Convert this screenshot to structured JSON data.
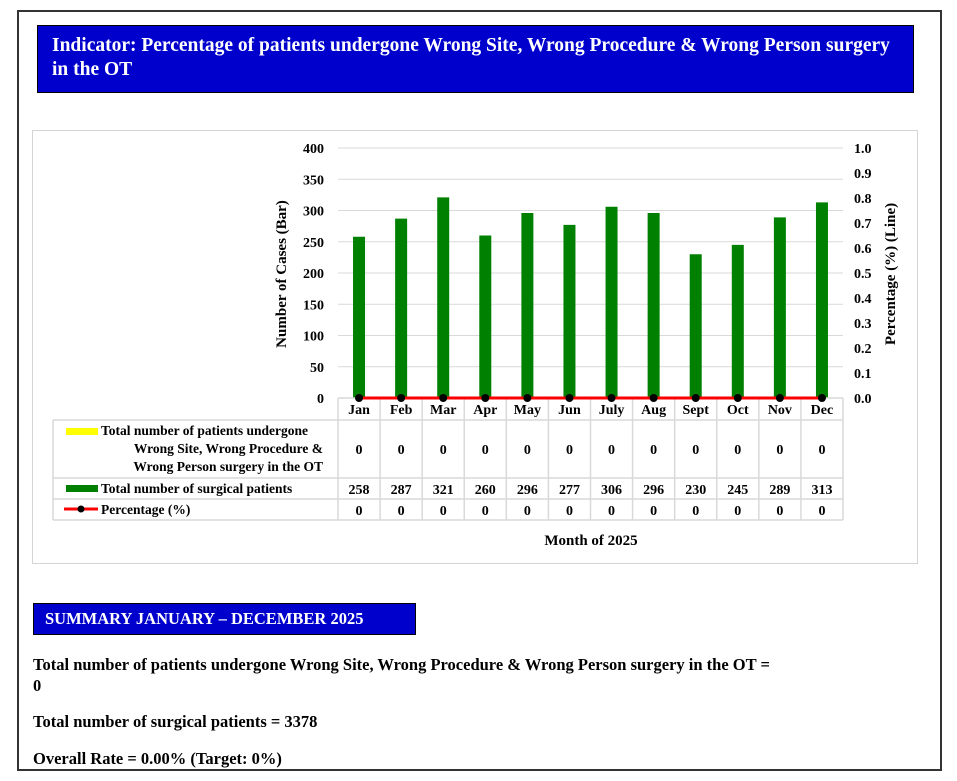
{
  "title": "Indicator: Percentage of patients undergone Wrong Site, Wrong Procedure & Wrong Person surgery in the OT",
  "colors": {
    "header_bg": "#0000cc",
    "bar": "#008000",
    "line": "#ff0000",
    "marker": "#000000",
    "legend_wrong": "#ffff00"
  },
  "chart_data": {
    "type": "bar",
    "categories": [
      "Jan",
      "Feb",
      "Mar",
      "Apr",
      "May",
      "Jun",
      "July",
      "Aug",
      "Sept",
      "Oct",
      "Nov",
      "Dec"
    ],
    "series": [
      {
        "name": "Total number of patients undergone Wrong Site, Wrong Procedure & Wrong Person surgery in the OT",
        "kind": "bar",
        "axis": "left",
        "values": [
          0,
          0,
          0,
          0,
          0,
          0,
          0,
          0,
          0,
          0,
          0,
          0
        ]
      },
      {
        "name": "Total number of surgical patients",
        "kind": "bar",
        "axis": "left",
        "values": [
          258,
          287,
          321,
          260,
          296,
          277,
          306,
          296,
          230,
          245,
          289,
          313
        ]
      },
      {
        "name": "Percentage (%)",
        "kind": "line",
        "axis": "right",
        "values": [
          0,
          0,
          0,
          0,
          0,
          0,
          0,
          0,
          0,
          0,
          0,
          0
        ]
      }
    ],
    "table_values": {
      "wrong": [
        "0",
        "0",
        "0",
        "0",
        "0",
        "0",
        "0",
        "0",
        "0",
        "0",
        "0",
        "0"
      ],
      "total": [
        "258",
        "287",
        "321",
        "260",
        "296",
        "277",
        "306",
        "296",
        "230",
        "245",
        "289",
        "313"
      ],
      "pct": [
        "0",
        "0",
        "0",
        "0",
        "0",
        "0",
        "0",
        "0",
        "0",
        "0",
        "0",
        "0"
      ]
    },
    "legend_labels": {
      "wrong_line1": "Total number of patients undergone",
      "wrong_line2": "Wrong Site, Wrong Procedure &",
      "wrong_line3": "Wrong Person surgery in the OT",
      "total": "Total number of surgical patients",
      "pct": "Percentage (%)"
    },
    "xlabel": "Month of 2025",
    "ylabel": "Number of Cases (Bar)",
    "y2label": "Percentage (%) (Line)",
    "ylim": [
      0,
      400
    ],
    "y2lim": [
      0,
      1.0
    ],
    "yticks": [
      "0",
      "50",
      "100",
      "150",
      "200",
      "250",
      "300",
      "350",
      "400"
    ],
    "y2ticks": [
      "0.0",
      "0.1",
      "0.2",
      "0.3",
      "0.4",
      "0.5",
      "0.6",
      "0.7",
      "0.8",
      "0.9",
      "1.0"
    ],
    "grid": true
  },
  "summary": {
    "heading": "SUMMARY JANUARY – DECEMBER 2025",
    "line1": "Total number of patients undergone Wrong Site, Wrong Procedure & Wrong Person surgery in the OT =",
    "line1_value": "0",
    "line2": "Total number of surgical patients = 3378",
    "line3": "Overall Rate = 0.00% (Target: 0%)"
  }
}
